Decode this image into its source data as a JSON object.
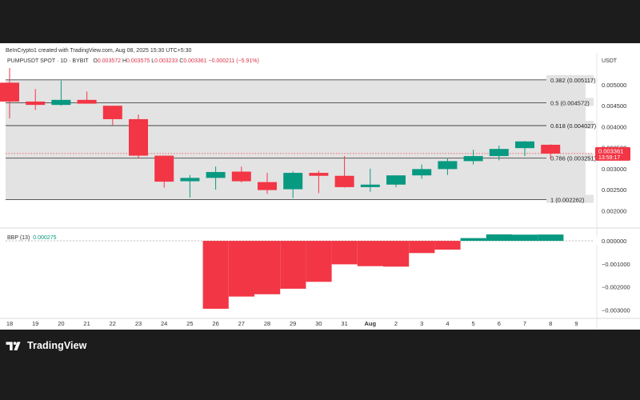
{
  "header": {
    "attribution": "BeInCrypto1 created with TradingView.com, Aug 08, 2025 15:30 UTC+5:30",
    "symbol": "PUMPUSDT SPOT · 1D · BYBIT",
    "o_label": "O",
    "o_value": "0.003572",
    "h_label": "H",
    "h_value": "0.003575",
    "l_label": "L",
    "l_value": "0.003233",
    "c_label": "C",
    "c_value": "0.003361",
    "change": "−0.000211 (−5.91%)",
    "currency": "USDT"
  },
  "price_badge": {
    "price": "0.003361",
    "countdown": "13:59:17",
    "color": "#f23645"
  },
  "indicator": {
    "name": "BBP (13)",
    "value": "0.000275"
  },
  "branding": {
    "logo_text": "TradingView"
  },
  "colors": {
    "up": "#089981",
    "down": "#f23645",
    "fib_zone": "#e3e3e3",
    "fib_line": "#444444",
    "page_bg": "#1c1c1c",
    "chart_bg": "#ffffff"
  },
  "chart_data": [
    {
      "type": "candlestick",
      "title": "PUMPUSDT SPOT · 1D · BYBIT",
      "x_tick_labels": [
        "18",
        "19",
        "20",
        "21",
        "22",
        "23",
        "24",
        "25",
        "26",
        "27",
        "28",
        "29",
        "30",
        "31",
        "Aug",
        "2",
        "3",
        "4",
        "5",
        "6",
        "7",
        "8",
        "9"
      ],
      "y_tick_labels": [
        "0.005000",
        "0.004500",
        "0.004000",
        "0.003500",
        "0.003000",
        "0.002500",
        "0.002000"
      ],
      "ylim": [
        0.0017,
        0.0054
      ],
      "candles": [
        {
          "date": "18",
          "open": 0.00505,
          "high": 0.0054,
          "low": 0.0042,
          "close": 0.0046
        },
        {
          "date": "19",
          "open": 0.0046,
          "high": 0.0049,
          "low": 0.0044,
          "close": 0.00452
        },
        {
          "date": "20",
          "open": 0.00452,
          "high": 0.0051,
          "low": 0.0045,
          "close": 0.00464
        },
        {
          "date": "21",
          "open": 0.00464,
          "high": 0.00484,
          "low": 0.00455,
          "close": 0.00455
        },
        {
          "date": "22",
          "open": 0.0045,
          "high": 0.0045,
          "low": 0.00404,
          "close": 0.00418
        },
        {
          "date": "23",
          "open": 0.00418,
          "high": 0.00429,
          "low": 0.00325,
          "close": 0.00331
        },
        {
          "date": "24",
          "open": 0.00331,
          "high": 0.00331,
          "low": 0.00255,
          "close": 0.00269
        },
        {
          "date": "25",
          "open": 0.0027,
          "high": 0.00285,
          "low": 0.00231,
          "close": 0.00278
        },
        {
          "date": "26",
          "open": 0.00278,
          "high": 0.00305,
          "low": 0.0025,
          "close": 0.00292
        },
        {
          "date": "27",
          "open": 0.00293,
          "high": 0.00305,
          "low": 0.00267,
          "close": 0.0027
        },
        {
          "date": "28",
          "open": 0.00268,
          "high": 0.0029,
          "low": 0.0024,
          "close": 0.00249
        },
        {
          "date": "29",
          "open": 0.00251,
          "high": 0.00293,
          "low": 0.0023,
          "close": 0.0029
        },
        {
          "date": "30",
          "open": 0.0029,
          "high": 0.00295,
          "low": 0.00242,
          "close": 0.00283
        },
        {
          "date": "31",
          "open": 0.00283,
          "high": 0.0033,
          "low": 0.00255,
          "close": 0.00256
        },
        {
          "date": "Aug",
          "open": 0.00256,
          "high": 0.003,
          "low": 0.00245,
          "close": 0.00262
        },
        {
          "date": "2",
          "open": 0.00262,
          "high": 0.00284,
          "low": 0.00256,
          "close": 0.00284
        },
        {
          "date": "3",
          "open": 0.00284,
          "high": 0.0031,
          "low": 0.00276,
          "close": 0.00299
        },
        {
          "date": "4",
          "open": 0.00299,
          "high": 0.00325,
          "low": 0.00285,
          "close": 0.00318
        },
        {
          "date": "5",
          "open": 0.00318,
          "high": 0.00345,
          "low": 0.0031,
          "close": 0.0033
        },
        {
          "date": "6",
          "open": 0.0033,
          "high": 0.00355,
          "low": 0.0032,
          "close": 0.00347
        },
        {
          "date": "7",
          "open": 0.00349,
          "high": 0.00366,
          "low": 0.0033,
          "close": 0.00365
        },
        {
          "date": "8",
          "open": 0.00357,
          "high": 0.00358,
          "low": 0.00323,
          "close": 0.00336
        }
      ],
      "fib_levels": [
        {
          "ratio": "0.382",
          "price": 0.005117,
          "label": "0.382 (0.005117)"
        },
        {
          "ratio": "0.5",
          "price": 0.004572,
          "label": "0.5 (0.004572)"
        },
        {
          "ratio": "0.618",
          "price": 0.004027,
          "label": "0.618 (0.004027)"
        },
        {
          "ratio": "0.786",
          "price": 0.003251,
          "label": "0.786 (0.003251)"
        },
        {
          "ratio": "1",
          "price": 0.002262,
          "label": "1 (0.002262)"
        }
      ],
      "last_price": 0.003361
    },
    {
      "type": "bar",
      "title": "BBP (13)",
      "y_tick_labels": [
        "0.000000",
        "−0.001000",
        "−0.002000",
        "−0.003000"
      ],
      "ylim": [
        -0.0033,
        0.00035
      ],
      "categories": [
        "26",
        "27",
        "28",
        "29",
        "30",
        "31",
        "Aug",
        "2",
        "3",
        "4",
        "5",
        "6",
        "7",
        "8"
      ],
      "values": [
        -0.00295,
        -0.00242,
        -0.00232,
        -0.00208,
        -0.00178,
        -0.00102,
        -0.0011,
        -0.00112,
        -0.00053,
        -0.00038,
        0.00012,
        0.00028,
        0.00027,
        0.000275
      ],
      "zero_label": "0.000000"
    }
  ]
}
